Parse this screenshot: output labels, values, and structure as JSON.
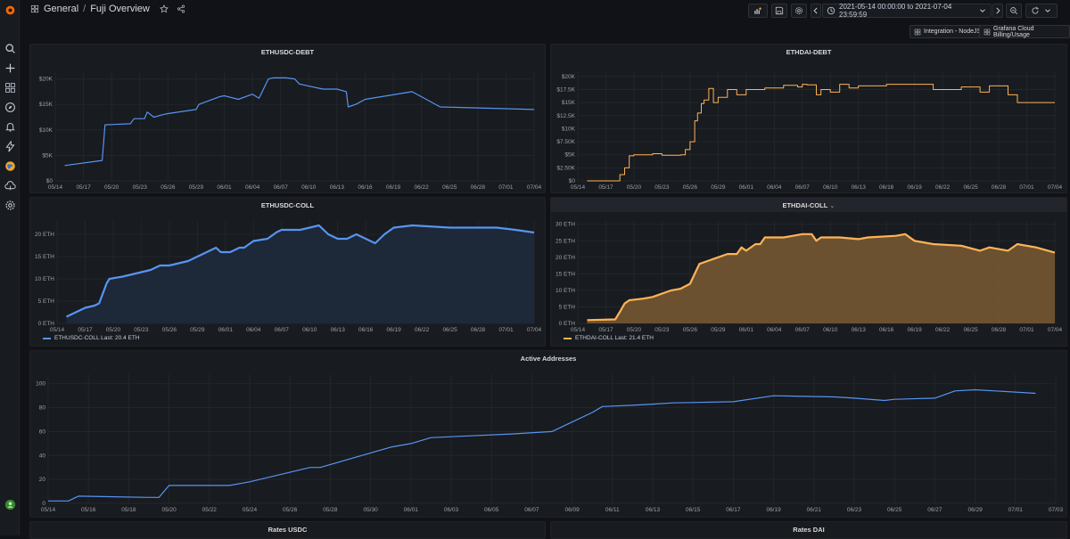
{
  "breadcrumb": {
    "folder": "General",
    "separator": "/",
    "dashboard": "Fuji Overview"
  },
  "time_range": "2021-05-14 00:00:00 to 2021-07-04 23:59:59",
  "links": [
    "Integration - NodeJS",
    "Grafana Cloud Billing/Usage"
  ],
  "icons": {
    "sidebar": [
      "grafana-logo-icon",
      "search-icon",
      "plus-icon",
      "dashboards-icon",
      "compass-icon",
      "bell-icon",
      "bolt-icon",
      "globe-icon",
      "cloud-icon",
      "gear-icon",
      "avatar-icon"
    ],
    "topbar": [
      "dashboards-icon",
      "star-icon",
      "share-icon",
      "add-panel-icon",
      "save-icon",
      "settings-icon",
      "clock-icon",
      "chevron-left-icon",
      "chevron-down-icon",
      "chevron-right-icon",
      "zoom-out-icon",
      "refresh-icon",
      "chevron-down-icon"
    ]
  },
  "colors": {
    "blue": "#5794f2",
    "orange": "#ffb357",
    "orange_fill": "#7a5a32",
    "blue_fill": "#1f2a3d",
    "grid": "#23262c"
  },
  "panels": {
    "ethusdc_debt": {
      "title": "ETHUSDC-DEBT"
    },
    "ethdai_debt": {
      "title": "ETHDAI-DEBT"
    },
    "ethusdc_coll": {
      "title": "ETHUSDC-COLL",
      "legend": "ETHUSDC-COLL  Last: 20.4 ETH"
    },
    "ethdai_coll": {
      "title": "ETHDAI-COLL",
      "title_suffix": "⌄",
      "legend": "ETHDAI-COLL  Last: 21.4 ETH"
    },
    "active_addresses": {
      "title": "Active Addresses"
    },
    "rates_usdc": {
      "title": "Rates USDC"
    },
    "rates_dai": {
      "title": "Rates DAI"
    }
  },
  "chart_data": [
    {
      "id": "ethusdc_debt",
      "type": "line",
      "title": "ETHUSDC-DEBT",
      "x_ticks": [
        "05/14",
        "05/17",
        "05/20",
        "05/23",
        "05/26",
        "05/29",
        "06/01",
        "06/04",
        "06/07",
        "06/10",
        "06/13",
        "06/16",
        "06/19",
        "06/22",
        "06/25",
        "06/28",
        "07/01",
        "07/04"
      ],
      "y_ticks": [
        "$0",
        "$5K",
        "$10K",
        "$15K",
        "$20K"
      ],
      "ylim": [
        0,
        21500
      ],
      "xlim": [
        0,
        51
      ],
      "color": "#5794f2",
      "step": false,
      "series": [
        {
          "x": [
            1,
            5,
            5.3,
            8,
            8.4,
            9.5,
            9.8,
            10.5,
            11.5,
            12,
            15,
            15.3,
            17.5,
            18,
            19.5,
            21,
            21.7,
            22.3,
            22.7,
            23.2,
            23.6,
            24.3,
            24.6,
            25.5,
            26,
            28.5,
            30,
            31,
            31.2,
            32,
            33,
            38,
            41,
            51
          ],
          "values": [
            3000,
            4000,
            11000,
            11200,
            12200,
            12200,
            13500,
            12500,
            13000,
            13200,
            14000,
            15000,
            16500,
            16700,
            16000,
            17000,
            16200,
            18500,
            20000,
            20200,
            20200,
            20200,
            20200,
            20000,
            19000,
            18000,
            18000,
            17500,
            14500,
            15000,
            16000,
            17500,
            14500,
            14000
          ]
        }
      ]
    },
    {
      "id": "ethdai_debt",
      "type": "line",
      "title": "ETHDAI-DEBT",
      "x_ticks": [
        "05/14",
        "05/17",
        "05/20",
        "05/23",
        "05/26",
        "05/29",
        "06/01",
        "06/04",
        "06/07",
        "06/10",
        "06/13",
        "06/16",
        "06/19",
        "06/22",
        "06/25",
        "06/28",
        "07/01",
        "07/04"
      ],
      "y_ticks": [
        "$0",
        "$2.50K",
        "$5K",
        "$7.50K",
        "$10K",
        "$12.5K",
        "$15K",
        "$17.5K",
        "$20K"
      ],
      "ylim": [
        0,
        21000
      ],
      "xlim": [
        0,
        51
      ],
      "color": "#ffb357",
      "step": true,
      "series": [
        {
          "x": [
            1,
            4,
            4.5,
            5,
            5.5,
            6,
            8,
            9,
            11,
            11.5,
            12,
            12.5,
            12.8,
            13.2,
            13.5,
            14,
            14.5,
            15,
            16,
            17,
            18,
            20,
            22,
            23,
            23.5,
            24,
            24.5,
            25.5,
            26,
            27,
            28,
            29,
            30,
            33,
            38,
            41,
            43,
            44,
            46,
            47,
            51
          ],
          "values": [
            0,
            0,
            1200,
            2500,
            4800,
            5000,
            5200,
            4900,
            5000,
            6000,
            7500,
            11500,
            13000,
            14800,
            15500,
            17700,
            15000,
            16000,
            17500,
            16500,
            17500,
            17800,
            18300,
            18300,
            18000,
            18500,
            18400,
            16500,
            17500,
            17000,
            18500,
            17800,
            18200,
            18500,
            17500,
            18000,
            17000,
            18200,
            16500,
            15000,
            15000
          ]
        }
      ]
    },
    {
      "id": "ethusdc_coll",
      "type": "area",
      "title": "ETHUSDC-COLL",
      "x_ticks": [
        "05/14",
        "05/17",
        "05/20",
        "05/23",
        "05/26",
        "05/29",
        "06/01",
        "06/04",
        "06/07",
        "06/10",
        "06/13",
        "06/16",
        "06/19",
        "06/22",
        "06/25",
        "06/28",
        "07/01",
        "07/04"
      ],
      "y_ticks": [
        "0 ETH",
        "5 ETH",
        "10 ETH",
        "15 ETH",
        "20 ETH"
      ],
      "ylim": [
        0,
        23
      ],
      "xlim": [
        0,
        51
      ],
      "color": "#5794f2",
      "fill": "#1f2a3d",
      "step": false,
      "legend": "ETHUSDC-COLL  Last: 20.4 ETH",
      "series": [
        {
          "name": "ETHUSDC-COLL",
          "x": [
            1,
            2,
            3,
            4,
            4.5,
            5.3,
            5.6,
            7,
            8,
            9,
            10,
            11,
            12,
            14,
            15,
            16,
            17,
            17.5,
            18.5,
            19.5,
            20,
            21,
            22.5,
            23.5,
            24,
            26,
            27,
            28,
            29,
            30,
            31,
            32,
            34,
            35,
            36,
            38,
            42,
            47,
            49,
            51
          ],
          "values": [
            1.5,
            2.5,
            3.5,
            4,
            4.5,
            9,
            10,
            10.5,
            11,
            11.5,
            12,
            13,
            13,
            14,
            15,
            16,
            17,
            16,
            16,
            17,
            17,
            18.5,
            19,
            20.5,
            21,
            21,
            21.5,
            22,
            20,
            19,
            19,
            20,
            18,
            20,
            21.5,
            22,
            21.5,
            21.5,
            21,
            20.4
          ]
        }
      ]
    },
    {
      "id": "ethdai_coll",
      "type": "area",
      "title": "ETHDAI-COLL",
      "x_ticks": [
        "05/14",
        "05/17",
        "05/20",
        "05/23",
        "05/26",
        "05/29",
        "06/01",
        "06/04",
        "06/07",
        "06/10",
        "06/13",
        "06/16",
        "06/19",
        "06/22",
        "06/25",
        "06/28",
        "07/01",
        "07/04"
      ],
      "y_ticks": [
        "0 ETH",
        "5 ETH",
        "10 ETH",
        "15 ETH",
        "20 ETH",
        "25 ETH",
        "30 ETH"
      ],
      "ylim": [
        0,
        31
      ],
      "xlim": [
        0,
        51
      ],
      "color": "#ffb357",
      "fill": "#7a5a32",
      "step": false,
      "legend": "ETHDAI-COLL  Last: 21.4 ETH",
      "series": [
        {
          "name": "ETHDAI-COLL",
          "x": [
            1,
            4,
            4.5,
            5,
            5.5,
            7,
            8,
            10,
            11,
            12,
            12.5,
            13,
            14,
            15,
            16,
            17,
            17.5,
            18,
            19,
            19.5,
            20,
            21,
            22,
            23,
            24,
            25,
            25.5,
            26,
            27,
            28,
            30,
            31,
            34,
            35,
            36,
            38,
            41,
            43,
            44,
            46,
            47,
            49,
            51
          ],
          "values": [
            1,
            1.2,
            3.5,
            6,
            7,
            7.5,
            8,
            10,
            10.5,
            12,
            15,
            18,
            19,
            20,
            21,
            21,
            23,
            22,
            24,
            24,
            26,
            26,
            26,
            26.5,
            27,
            27,
            25,
            26,
            26,
            26,
            25.5,
            26,
            26.5,
            27,
            25,
            24,
            23.5,
            22,
            23,
            22,
            24,
            23,
            21.4
          ]
        }
      ]
    },
    {
      "id": "active_addresses",
      "type": "line",
      "title": "Active Addresses",
      "x_ticks": [
        "05/14",
        "05/16",
        "05/18",
        "05/20",
        "05/22",
        "05/24",
        "05/26",
        "05/28",
        "05/30",
        "06/01",
        "06/03",
        "06/05",
        "06/07",
        "06/09",
        "06/11",
        "06/13",
        "06/15",
        "06/17",
        "06/19",
        "06/21",
        "06/23",
        "06/25",
        "06/27",
        "06/29",
        "07/01",
        "07/03"
      ],
      "y_ticks": [
        "0",
        "20",
        "40",
        "60",
        "80",
        "100"
      ],
      "ylim": [
        0,
        108
      ],
      "xlim": [
        0,
        50
      ],
      "color": "#5794f2",
      "step": false,
      "series": [
        {
          "x": [
            0,
            1,
            1.5,
            5,
            5.5,
            6,
            9,
            10,
            13,
            13.5,
            17,
            18,
            19,
            23,
            25,
            27,
            27.5,
            29,
            30,
            31,
            34,
            36,
            39,
            40,
            41.5,
            42,
            44,
            45,
            46,
            47,
            48,
            49
          ],
          "values": [
            2,
            2,
            6,
            5,
            5,
            15,
            15,
            18,
            30,
            30,
            47,
            50,
            55,
            58,
            60,
            76,
            81,
            82,
            83,
            84,
            85,
            90,
            89,
            88,
            86,
            87,
            88,
            94,
            95,
            94,
            93,
            92
          ]
        }
      ]
    }
  ]
}
